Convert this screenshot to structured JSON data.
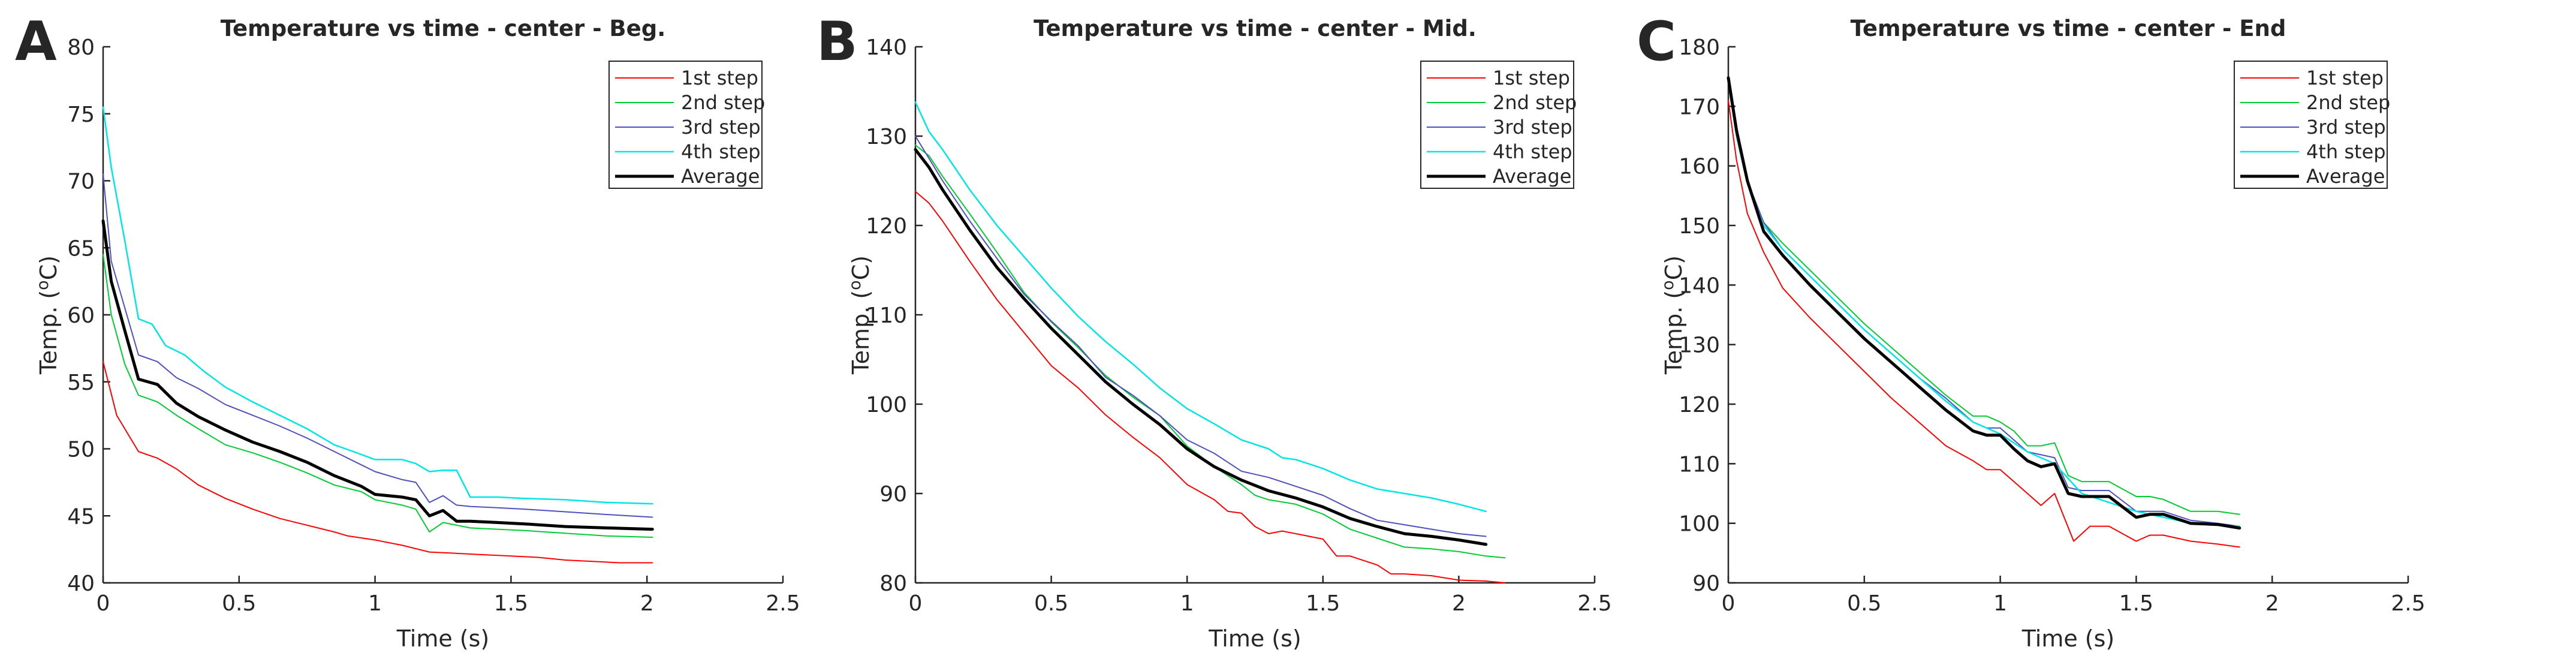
{
  "chart_data": [
    {
      "type": "line",
      "panel_label": "A",
      "title": "Temperature vs time - center - Beg.",
      "xlabel": "Time (s)",
      "ylabel": "Temp. (",
      "ylabel_sup": "o",
      "ylabel_unit": "C)",
      "xlim": [
        0,
        2.5
      ],
      "ylim": [
        40,
        80
      ],
      "xticks": [
        0,
        0.5,
        1,
        1.5,
        2,
        2.5
      ],
      "xtick_labels": [
        "0",
        "0.5",
        "1",
        "1.5",
        "2",
        "2.5"
      ],
      "yticks": [
        40,
        45,
        50,
        55,
        60,
        65,
        70,
        75,
        80
      ],
      "ytick_labels": [
        "40",
        "45",
        "50",
        "55",
        "60",
        "65",
        "70",
        "75",
        "80"
      ],
      "legend_position": "top-right",
      "series": [
        {
          "name": "1st step",
          "color": "#ff0000",
          "width": 2,
          "x": [
            0,
            0.05,
            0.13,
            0.2,
            0.27,
            0.35,
            0.45,
            0.55,
            0.65,
            0.75,
            0.85,
            0.9,
            1.0,
            1.1,
            1.2,
            1.3,
            1.4,
            1.5,
            1.6,
            1.7,
            1.8,
            1.9,
            2.02
          ],
          "y": [
            56.5,
            52.5,
            49.8,
            49.3,
            48.5,
            47.3,
            46.3,
            45.5,
            44.8,
            44.3,
            43.8,
            43.5,
            43.2,
            42.8,
            42.3,
            42.2,
            42.1,
            42.0,
            41.9,
            41.7,
            41.6,
            41.5,
            41.5
          ]
        },
        {
          "name": "2nd step",
          "color": "#00cc33",
          "width": 2,
          "x": [
            0,
            0.03,
            0.08,
            0.13,
            0.2,
            0.27,
            0.35,
            0.45,
            0.55,
            0.65,
            0.75,
            0.85,
            0.95,
            1.0,
            1.1,
            1.15,
            1.2,
            1.25,
            1.3,
            1.35,
            1.45,
            1.55,
            1.7,
            1.85,
            2.02
          ],
          "y": [
            64.5,
            60.0,
            56.3,
            54.0,
            53.5,
            52.5,
            51.5,
            50.3,
            49.7,
            49.0,
            48.2,
            47.3,
            46.8,
            46.2,
            45.8,
            45.5,
            43.8,
            44.5,
            44.3,
            44.1,
            44.0,
            43.9,
            43.7,
            43.5,
            43.4
          ]
        },
        {
          "name": "3rd step",
          "color": "#4f4fbf",
          "width": 2,
          "x": [
            0,
            0.03,
            0.08,
            0.13,
            0.2,
            0.27,
            0.35,
            0.45,
            0.55,
            0.65,
            0.75,
            0.85,
            0.95,
            1.0,
            1.1,
            1.15,
            1.2,
            1.25,
            1.3,
            1.35,
            1.45,
            1.55,
            1.7,
            1.85,
            2.02
          ],
          "y": [
            70.5,
            64.0,
            60.5,
            57.0,
            56.5,
            55.3,
            54.5,
            53.3,
            52.5,
            51.7,
            50.8,
            49.8,
            48.8,
            48.3,
            47.7,
            47.5,
            46.0,
            46.5,
            45.8,
            45.7,
            45.6,
            45.5,
            45.3,
            45.1,
            44.9
          ]
        },
        {
          "name": "4th step",
          "color": "#00e5e5",
          "width": 2.5,
          "x": [
            0,
            0.03,
            0.08,
            0.13,
            0.18,
            0.23,
            0.3,
            0.37,
            0.45,
            0.55,
            0.65,
            0.75,
            0.85,
            0.92,
            1.0,
            1.1,
            1.15,
            1.2,
            1.25,
            1.3,
            1.35,
            1.45,
            1.55,
            1.7,
            1.85,
            2.02
          ],
          "y": [
            75.5,
            71.0,
            65.5,
            59.7,
            59.3,
            57.7,
            57.0,
            55.8,
            54.6,
            53.5,
            52.5,
            51.5,
            50.3,
            49.8,
            49.2,
            49.2,
            48.9,
            48.3,
            48.4,
            48.4,
            46.4,
            46.4,
            46.3,
            46.2,
            46.0,
            45.9
          ]
        },
        {
          "name": "Average",
          "color": "#000000",
          "width": 5,
          "x": [
            0,
            0.03,
            0.08,
            0.13,
            0.2,
            0.27,
            0.35,
            0.45,
            0.55,
            0.65,
            0.75,
            0.85,
            0.95,
            1.0,
            1.1,
            1.15,
            1.2,
            1.25,
            1.3,
            1.35,
            1.45,
            1.55,
            1.7,
            1.85,
            2.02
          ],
          "y": [
            67.0,
            62.5,
            58.8,
            55.2,
            54.8,
            53.4,
            52.4,
            51.4,
            50.5,
            49.8,
            49.0,
            48.0,
            47.2,
            46.6,
            46.4,
            46.2,
            45.0,
            45.4,
            44.6,
            44.6,
            44.5,
            44.4,
            44.2,
            44.1,
            44.0
          ]
        }
      ]
    },
    {
      "type": "line",
      "panel_label": "B",
      "title": "Temperature vs time - center - Mid.",
      "xlabel": "Time (s)",
      "ylabel": "Temp. (",
      "ylabel_sup": "o",
      "ylabel_unit": "C)",
      "xlim": [
        0,
        2.5
      ],
      "ylim": [
        80,
        140
      ],
      "xticks": [
        0,
        0.5,
        1,
        1.5,
        2,
        2.5
      ],
      "xtick_labels": [
        "0",
        "0.5",
        "1",
        "1.5",
        "2",
        "2.5"
      ],
      "yticks": [
        80,
        90,
        100,
        110,
        120,
        130,
        140
      ],
      "ytick_labels": [
        "80",
        "90",
        "100",
        "110",
        "120",
        "130",
        "140"
      ],
      "legend_position": "top-right",
      "series": [
        {
          "name": "1st step",
          "color": "#ff0000",
          "width": 2,
          "x": [
            0,
            0.05,
            0.1,
            0.2,
            0.3,
            0.4,
            0.5,
            0.6,
            0.7,
            0.8,
            0.9,
            1.0,
            1.1,
            1.15,
            1.2,
            1.25,
            1.3,
            1.35,
            1.4,
            1.5,
            1.55,
            1.6,
            1.7,
            1.75,
            1.8,
            1.9,
            2.0,
            2.1,
            2.17
          ],
          "y": [
            123.8,
            122.5,
            120.5,
            116.0,
            111.7,
            108.0,
            104.3,
            101.8,
            98.8,
            96.3,
            94.0,
            91.0,
            89.3,
            88.0,
            87.8,
            86.3,
            85.5,
            85.8,
            85.5,
            84.9,
            83.0,
            83.0,
            82.0,
            81.0,
            81.0,
            80.8,
            80.3,
            80.2,
            80.0
          ]
        },
        {
          "name": "2nd step",
          "color": "#00cc33",
          "width": 2,
          "x": [
            0,
            0.05,
            0.1,
            0.2,
            0.3,
            0.4,
            0.5,
            0.6,
            0.7,
            0.8,
            0.9,
            1.0,
            1.1,
            1.2,
            1.25,
            1.3,
            1.4,
            1.5,
            1.6,
            1.7,
            1.8,
            1.9,
            2.0,
            2.1,
            2.17
          ],
          "y": [
            129.0,
            127.8,
            125.5,
            121.3,
            117.0,
            112.5,
            109.2,
            106.3,
            103.2,
            100.8,
            98.7,
            95.3,
            93.0,
            91.0,
            89.8,
            89.3,
            88.8,
            87.7,
            86.0,
            85.0,
            84.0,
            83.8,
            83.5,
            83.0,
            82.8
          ]
        },
        {
          "name": "3rd step",
          "color": "#4f4fbf",
          "width": 2,
          "x": [
            0,
            0.05,
            0.1,
            0.2,
            0.3,
            0.4,
            0.5,
            0.6,
            0.7,
            0.8,
            0.9,
            1.0,
            1.1,
            1.2,
            1.3,
            1.4,
            1.5,
            1.6,
            1.7,
            1.8,
            1.9,
            2.0,
            2.1
          ],
          "y": [
            130.0,
            127.5,
            125.0,
            120.5,
            116.3,
            112.3,
            109.3,
            106.5,
            103.0,
            101.0,
            98.7,
            96.0,
            94.5,
            92.5,
            91.8,
            90.8,
            89.8,
            88.3,
            87.0,
            86.5,
            86.0,
            85.5,
            85.2
          ]
        },
        {
          "name": "4th step",
          "color": "#00e5e5",
          "width": 2.5,
          "x": [
            0,
            0.05,
            0.1,
            0.2,
            0.3,
            0.4,
            0.5,
            0.6,
            0.7,
            0.8,
            0.9,
            1.0,
            1.1,
            1.2,
            1.3,
            1.35,
            1.4,
            1.5,
            1.6,
            1.7,
            1.8,
            1.9,
            2.0,
            2.1
          ],
          "y": [
            133.8,
            130.5,
            128.5,
            124.0,
            120.0,
            116.5,
            113.0,
            109.8,
            107.0,
            104.5,
            101.8,
            99.5,
            97.8,
            96.0,
            95.0,
            94.0,
            93.8,
            92.8,
            91.5,
            90.5,
            90.0,
            89.5,
            88.8,
            88.0
          ]
        },
        {
          "name": "Average",
          "color": "#000000",
          "width": 5,
          "x": [
            0,
            0.05,
            0.1,
            0.2,
            0.3,
            0.4,
            0.5,
            0.6,
            0.7,
            0.8,
            0.9,
            1.0,
            1.1,
            1.2,
            1.3,
            1.4,
            1.5,
            1.6,
            1.7,
            1.8,
            1.9,
            2.0,
            2.1
          ],
          "y": [
            128.5,
            126.5,
            124.0,
            119.5,
            115.3,
            111.8,
            108.5,
            105.5,
            102.5,
            100.0,
            97.7,
            95.0,
            93.0,
            91.5,
            90.3,
            89.5,
            88.5,
            87.2,
            86.3,
            85.5,
            85.2,
            84.8,
            84.3
          ]
        }
      ]
    },
    {
      "type": "line",
      "panel_label": "C",
      "title": "Temperature vs time - center - End",
      "xlabel": "Time (s)",
      "ylabel": "Temp. (",
      "ylabel_sup": "o",
      "ylabel_unit": "C)",
      "xlim": [
        0,
        2.5
      ],
      "ylim": [
        90,
        180
      ],
      "xticks": [
        0,
        0.5,
        1,
        1.5,
        2,
        2.5
      ],
      "xtick_labels": [
        "0",
        "0.5",
        "1",
        "1.5",
        "2",
        "2.5"
      ],
      "yticks": [
        90,
        100,
        110,
        120,
        130,
        140,
        150,
        160,
        170,
        180
      ],
      "ytick_labels": [
        "90",
        "100",
        "110",
        "120",
        "130",
        "140",
        "150",
        "160",
        "170",
        "180"
      ],
      "legend_position": "top-right",
      "series": [
        {
          "name": "1st step",
          "color": "#ff0000",
          "width": 2,
          "x": [
            0,
            0.03,
            0.07,
            0.13,
            0.2,
            0.3,
            0.4,
            0.5,
            0.6,
            0.7,
            0.8,
            0.9,
            0.95,
            1.0,
            1.05,
            1.1,
            1.15,
            1.2,
            1.27,
            1.33,
            1.4,
            1.5,
            1.55,
            1.6,
            1.7,
            1.8,
            1.88
          ],
          "y": [
            171.0,
            161.0,
            152.0,
            145.5,
            139.5,
            134.5,
            130.0,
            125.5,
            121.0,
            117.0,
            113.0,
            110.5,
            109.0,
            109.0,
            107.0,
            105.0,
            103.0,
            105.0,
            97.0,
            99.5,
            99.5,
            97.0,
            98.0,
            98.0,
            97.0,
            96.5,
            96.0
          ]
        },
        {
          "name": "2nd step",
          "color": "#00cc33",
          "width": 2,
          "x": [
            0,
            0.03,
            0.07,
            0.13,
            0.2,
            0.3,
            0.4,
            0.5,
            0.6,
            0.7,
            0.8,
            0.9,
            0.95,
            1.0,
            1.05,
            1.1,
            1.15,
            1.2,
            1.25,
            1.3,
            1.4,
            1.5,
            1.55,
            1.6,
            1.65,
            1.7,
            1.8,
            1.88
          ],
          "y": [
            174.0,
            165.0,
            157.0,
            150.5,
            147.0,
            142.5,
            138.0,
            133.5,
            129.5,
            125.5,
            121.5,
            118.0,
            118.0,
            117.0,
            115.5,
            113.0,
            113.0,
            113.5,
            108.0,
            107.0,
            107.0,
            104.5,
            104.5,
            104.0,
            103.0,
            102.0,
            102.0,
            101.5
          ]
        },
        {
          "name": "3rd step",
          "color": "#4f4fbf",
          "width": 2,
          "x": [
            0,
            0.03,
            0.07,
            0.13,
            0.2,
            0.3,
            0.4,
            0.5,
            0.6,
            0.7,
            0.8,
            0.9,
            0.95,
            1.0,
            1.05,
            1.1,
            1.15,
            1.2,
            1.25,
            1.3,
            1.4,
            1.5,
            1.6,
            1.7,
            1.8,
            1.88
          ],
          "y": [
            174.5,
            166.0,
            157.5,
            150.5,
            146.0,
            141.5,
            137.0,
            132.5,
            128.5,
            124.5,
            121.0,
            117.0,
            116.0,
            116.0,
            114.0,
            112.0,
            111.5,
            111.0,
            106.0,
            105.5,
            105.5,
            102.0,
            102.0,
            100.5,
            100.0,
            99.5
          ]
        },
        {
          "name": "4th step",
          "color": "#00e5e5",
          "width": 2.5,
          "x": [
            0,
            0.03,
            0.07,
            0.13,
            0.2,
            0.3,
            0.4,
            0.5,
            0.6,
            0.7,
            0.8,
            0.9,
            1.0,
            1.1,
            1.2,
            1.3,
            1.5,
            1.6,
            1.7,
            1.88
          ],
          "y": [
            174.0,
            165.0,
            157.0,
            150.0,
            146.0,
            141.5,
            137.0,
            132.5,
            128.5,
            124.5,
            120.5,
            117.0,
            115.0,
            112.0,
            110.0,
            105.0,
            102.0,
            101.0,
            100.0,
            99.5
          ]
        },
        {
          "name": "Average",
          "color": "#000000",
          "width": 5,
          "x": [
            0,
            0.03,
            0.07,
            0.13,
            0.2,
            0.3,
            0.4,
            0.5,
            0.6,
            0.7,
            0.8,
            0.9,
            0.95,
            1.0,
            1.05,
            1.1,
            1.15,
            1.2,
            1.25,
            1.3,
            1.4,
            1.5,
            1.55,
            1.6,
            1.7,
            1.8,
            1.88
          ],
          "y": [
            174.8,
            166.0,
            157.5,
            149.0,
            145.0,
            140.0,
            135.5,
            131.0,
            127.0,
            123.0,
            119.0,
            115.5,
            114.8,
            114.8,
            112.5,
            110.5,
            109.5,
            110.0,
            105.0,
            104.5,
            104.5,
            101.0,
            101.5,
            101.5,
            100.0,
            99.8,
            99.2
          ]
        }
      ]
    }
  ]
}
